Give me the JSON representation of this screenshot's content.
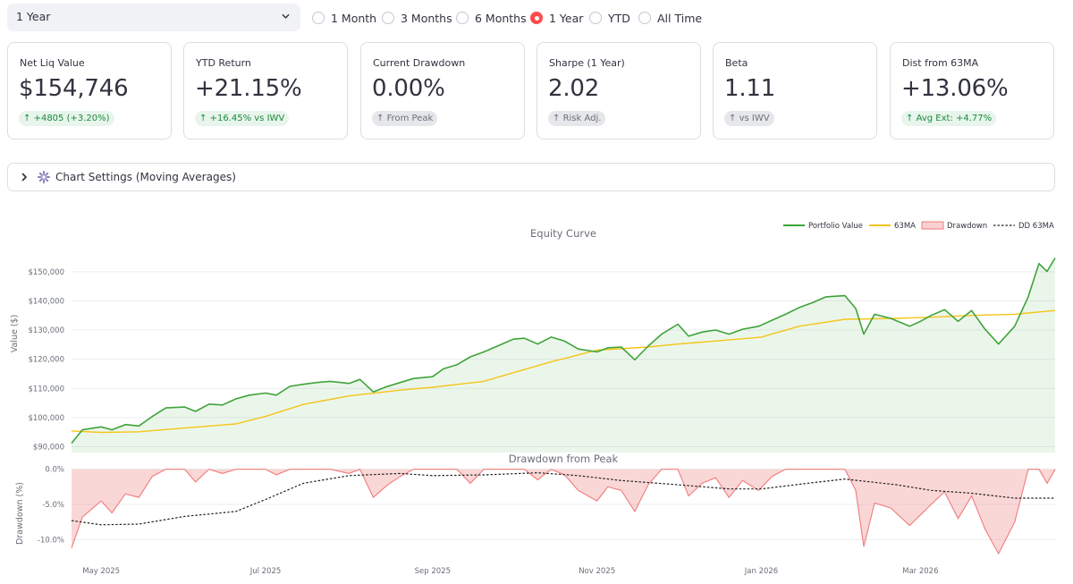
{
  "period_select": {
    "value": "1 Year"
  },
  "period_radio": {
    "options": [
      "1 Month",
      "3 Months",
      "6 Months",
      "1 Year",
      "YTD",
      "All Time"
    ],
    "selected": "1 Year"
  },
  "metrics": [
    {
      "label": "Net Liq Value",
      "value": "$154,746",
      "delta": "+4805 (+3.20%)",
      "delta_color": "green"
    },
    {
      "label": "YTD Return",
      "value": "+21.15%",
      "delta": "+16.45% vs IWV",
      "delta_color": "green"
    },
    {
      "label": "Current Drawdown",
      "value": "0.00%",
      "delta": "From Peak",
      "delta_color": "gray"
    },
    {
      "label": "Sharpe (1 Year)",
      "value": "2.02",
      "delta": "Risk Adj.",
      "delta_color": "gray"
    },
    {
      "label": "Beta",
      "value": "1.11",
      "delta": "vs IWV",
      "delta_color": "gray"
    },
    {
      "label": "Dist from 63MA",
      "value": "+13.06%",
      "delta": "Avg Ext: +4.77%",
      "delta_color": "green"
    }
  ],
  "expander": {
    "title": "Chart Settings (Moving Averages)",
    "icon": "gear-icon"
  },
  "colors": {
    "portfolio": "#3fa33a",
    "ma": "#f5c518",
    "drawdown": "#f07b7b",
    "accent": "#ff4b4b"
  },
  "chart_data": [
    {
      "type": "line",
      "title": "Equity Curve",
      "ylabel": "Value ($)",
      "ylim": [
        88000,
        157000
      ],
      "yticks": [
        90000,
        100000,
        110000,
        120000,
        130000,
        140000,
        150000
      ],
      "ytick_labels": [
        "$90,000",
        "$100,000",
        "$110,000",
        "$120,000",
        "$130,000",
        "$140,000",
        "$150,000"
      ],
      "xlim": [
        "2025-04-20",
        "2026-04-20"
      ],
      "xticks": [
        "2025-05-01",
        "2025-07-01",
        "2025-09-01",
        "2025-11-01",
        "2026-01-01",
        "2026-03-01"
      ],
      "xtick_labels": [
        "May 2025",
        "Jul 2025",
        "Sep 2025",
        "Nov 2025",
        "Jan 2026",
        "Mar 2026"
      ],
      "legend": [
        "Portfolio Value",
        "63MA",
        "Drawdown",
        "DD 63MA"
      ],
      "legend_position": "top-right",
      "grid": true,
      "series": [
        {
          "name": "Portfolio Value",
          "area_fill": true,
          "points": [
            [
              "2025-04-20",
              91200
            ],
            [
              "2025-04-24",
              95800
            ],
            [
              "2025-05-01",
              96800
            ],
            [
              "2025-05-05",
              95800
            ],
            [
              "2025-05-10",
              97600
            ],
            [
              "2025-05-15",
              97100
            ],
            [
              "2025-05-20",
              100400
            ],
            [
              "2025-05-25",
              103300
            ],
            [
              "2025-06-01",
              103600
            ],
            [
              "2025-06-05",
              102100
            ],
            [
              "2025-06-10",
              104600
            ],
            [
              "2025-06-15",
              104300
            ],
            [
              "2025-06-20",
              106400
            ],
            [
              "2025-06-25",
              107700
            ],
            [
              "2025-07-01",
              108400
            ],
            [
              "2025-07-05",
              107700
            ],
            [
              "2025-07-10",
              110700
            ],
            [
              "2025-07-15",
              111400
            ],
            [
              "2025-07-20",
              112000
            ],
            [
              "2025-07-25",
              112400
            ],
            [
              "2025-08-01",
              111700
            ],
            [
              "2025-08-05",
              113100
            ],
            [
              "2025-08-10",
              108800
            ],
            [
              "2025-08-15",
              110600
            ],
            [
              "2025-08-20",
              112000
            ],
            [
              "2025-08-25",
              113400
            ],
            [
              "2025-09-01",
              114000
            ],
            [
              "2025-09-05",
              116700
            ],
            [
              "2025-09-10",
              118100
            ],
            [
              "2025-09-15",
              120800
            ],
            [
              "2025-09-20",
              122500
            ],
            [
              "2025-09-25",
              124500
            ],
            [
              "2025-10-01",
              126900
            ],
            [
              "2025-10-05",
              127200
            ],
            [
              "2025-10-10",
              125200
            ],
            [
              "2025-10-15",
              127600
            ],
            [
              "2025-10-20",
              126200
            ],
            [
              "2025-10-25",
              123500
            ],
            [
              "2025-11-01",
              122500
            ],
            [
              "2025-11-05",
              123900
            ],
            [
              "2025-11-10",
              124200
            ],
            [
              "2025-11-15",
              119800
            ],
            [
              "2025-11-20",
              124500
            ],
            [
              "2025-11-25",
              128600
            ],
            [
              "2025-12-01",
              132000
            ],
            [
              "2025-12-05",
              127900
            ],
            [
              "2025-12-10",
              129300
            ],
            [
              "2025-12-15",
              130000
            ],
            [
              "2025-12-20",
              128600
            ],
            [
              "2025-12-25",
              130300
            ],
            [
              "2025-12-31",
              131300
            ],
            [
              "2026-01-05",
              133400
            ],
            [
              "2026-01-10",
              135400
            ],
            [
              "2026-01-15",
              137700
            ],
            [
              "2026-01-20",
              139400
            ],
            [
              "2026-01-25",
              141400
            ],
            [
              "2026-02-01",
              141800
            ],
            [
              "2026-02-05",
              137400
            ],
            [
              "2026-02-08",
              128600
            ],
            [
              "2026-02-12",
              135400
            ],
            [
              "2026-02-18",
              134000
            ],
            [
              "2026-02-25",
              131300
            ],
            [
              "2026-03-01",
              133000
            ],
            [
              "2026-03-05",
              135000
            ],
            [
              "2026-03-10",
              137000
            ],
            [
              "2026-03-15",
              133000
            ],
            [
              "2026-03-20",
              136700
            ],
            [
              "2026-03-25",
              130300
            ],
            [
              "2026-03-30",
              125200
            ],
            [
              "2026-04-05",
              131300
            ],
            [
              "2026-04-10",
              141400
            ],
            [
              "2026-04-14",
              152800
            ],
            [
              "2026-04-17",
              150100
            ],
            [
              "2026-04-20",
              154700
            ]
          ]
        },
        {
          "name": "63MA",
          "points": [
            [
              "2025-04-20",
              95400
            ],
            [
              "2025-05-01",
              94900
            ],
            [
              "2025-05-15",
              95100
            ],
            [
              "2025-06-01",
              96400
            ],
            [
              "2025-06-20",
              97800
            ],
            [
              "2025-07-01",
              100400
            ],
            [
              "2025-07-15",
              104500
            ],
            [
              "2025-08-01",
              107400
            ],
            [
              "2025-08-20",
              109400
            ],
            [
              "2025-09-01",
              110400
            ],
            [
              "2025-09-20",
              112400
            ],
            [
              "2025-10-01",
              115400
            ],
            [
              "2025-10-15",
              119100
            ],
            [
              "2025-11-01",
              123100
            ],
            [
              "2025-11-20",
              124200
            ],
            [
              "2025-12-01",
              125200
            ],
            [
              "2025-12-20",
              126600
            ],
            [
              "2026-01-01",
              127600
            ],
            [
              "2026-01-15",
              131300
            ],
            [
              "2026-02-01",
              133700
            ],
            [
              "2026-02-20",
              134000
            ],
            [
              "2026-03-05",
              134400
            ],
            [
              "2026-03-20",
              135000
            ],
            [
              "2026-04-05",
              135400
            ],
            [
              "2026-04-20",
              136700
            ]
          ]
        }
      ]
    },
    {
      "type": "area",
      "title": "Drawdown from Peak",
      "ylabel": "Drawdown (%)",
      "ylim": [
        -12.5,
        0.6
      ],
      "yticks": [
        0,
        -5,
        -10
      ],
      "ytick_labels": [
        "0.0%",
        "-5.0%",
        "-10.0%"
      ],
      "xlim": [
        "2025-04-20",
        "2026-04-20"
      ],
      "grid": true,
      "series": [
        {
          "name": "Drawdown",
          "points": [
            [
              "2025-04-20",
              -11.2
            ],
            [
              "2025-04-24",
              -6.8
            ],
            [
              "2025-05-01",
              -4.5
            ],
            [
              "2025-05-05",
              -6.2
            ],
            [
              "2025-05-10",
              -3.5
            ],
            [
              "2025-05-15",
              -4.0
            ],
            [
              "2025-05-20",
              -1.0
            ],
            [
              "2025-05-25",
              0
            ],
            [
              "2025-06-01",
              0
            ],
            [
              "2025-06-05",
              -1.8
            ],
            [
              "2025-06-10",
              0
            ],
            [
              "2025-06-15",
              -0.6
            ],
            [
              "2025-06-20",
              0
            ],
            [
              "2025-06-25",
              0
            ],
            [
              "2025-07-01",
              0
            ],
            [
              "2025-07-05",
              -0.8
            ],
            [
              "2025-07-10",
              0
            ],
            [
              "2025-07-25",
              0
            ],
            [
              "2025-08-01",
              -0.6
            ],
            [
              "2025-08-05",
              0
            ],
            [
              "2025-08-10",
              -4.0
            ],
            [
              "2025-08-15",
              -2.3
            ],
            [
              "2025-08-20",
              -1.0
            ],
            [
              "2025-08-25",
              0
            ],
            [
              "2025-09-10",
              0
            ],
            [
              "2025-09-15",
              -2.0
            ],
            [
              "2025-09-20",
              0
            ],
            [
              "2025-10-05",
              0
            ],
            [
              "2025-10-10",
              -1.5
            ],
            [
              "2025-10-15",
              0
            ],
            [
              "2025-10-20",
              -0.8
            ],
            [
              "2025-10-25",
              -3.0
            ],
            [
              "2025-11-01",
              -4.5
            ],
            [
              "2025-11-05",
              -2.5
            ],
            [
              "2025-11-10",
              -3.0
            ],
            [
              "2025-11-15",
              -6.0
            ],
            [
              "2025-11-20",
              -2.2
            ],
            [
              "2025-11-25",
              0
            ],
            [
              "2025-12-01",
              0
            ],
            [
              "2025-12-05",
              -3.8
            ],
            [
              "2025-12-10",
              -2.0
            ],
            [
              "2025-12-15",
              -1.2
            ],
            [
              "2025-12-20",
              -4.0
            ],
            [
              "2025-12-25",
              -1.6
            ],
            [
              "2025-12-31",
              -3.0
            ],
            [
              "2026-01-05",
              -1.0
            ],
            [
              "2026-01-10",
              0
            ],
            [
              "2026-02-01",
              0
            ],
            [
              "2026-02-05",
              -3.0
            ],
            [
              "2026-02-08",
              -11.0
            ],
            [
              "2026-02-12",
              -4.8
            ],
            [
              "2026-02-18",
              -5.5
            ],
            [
              "2026-02-25",
              -8.0
            ],
            [
              "2026-03-01",
              -6.5
            ],
            [
              "2026-03-05",
              -5.0
            ],
            [
              "2026-03-10",
              -3.2
            ],
            [
              "2026-03-15",
              -7.0
            ],
            [
              "2026-03-20",
              -3.8
            ],
            [
              "2026-03-25",
              -8.5
            ],
            [
              "2026-03-30",
              -12.0
            ],
            [
              "2026-04-05",
              -7.5
            ],
            [
              "2026-04-10",
              0
            ],
            [
              "2026-04-14",
              0
            ],
            [
              "2026-04-17",
              -2.0
            ],
            [
              "2026-04-20",
              0
            ]
          ]
        },
        {
          "name": "DD 63MA",
          "points": [
            [
              "2025-04-20",
              -7.3
            ],
            [
              "2025-05-01",
              -7.9
            ],
            [
              "2025-05-15",
              -7.8
            ],
            [
              "2025-06-01",
              -6.7
            ],
            [
              "2025-06-20",
              -6.0
            ],
            [
              "2025-07-01",
              -4.3
            ],
            [
              "2025-07-15",
              -2.0
            ],
            [
              "2025-08-01",
              -0.9
            ],
            [
              "2025-08-20",
              -0.6
            ],
            [
              "2025-09-01",
              -0.9
            ],
            [
              "2025-09-20",
              -0.8
            ],
            [
              "2025-10-10",
              -0.5
            ],
            [
              "2025-10-25",
              -0.9
            ],
            [
              "2025-11-10",
              -1.6
            ],
            [
              "2025-12-01",
              -2.2
            ],
            [
              "2025-12-20",
              -2.8
            ],
            [
              "2026-01-01",
              -2.8
            ],
            [
              "2026-01-20",
              -1.9
            ],
            [
              "2026-02-01",
              -1.4
            ],
            [
              "2026-02-20",
              -2.2
            ],
            [
              "2026-03-05",
              -3.0
            ],
            [
              "2026-03-20",
              -3.4
            ],
            [
              "2026-04-05",
              -4.1
            ],
            [
              "2026-04-20",
              -4.1
            ]
          ]
        }
      ]
    }
  ]
}
